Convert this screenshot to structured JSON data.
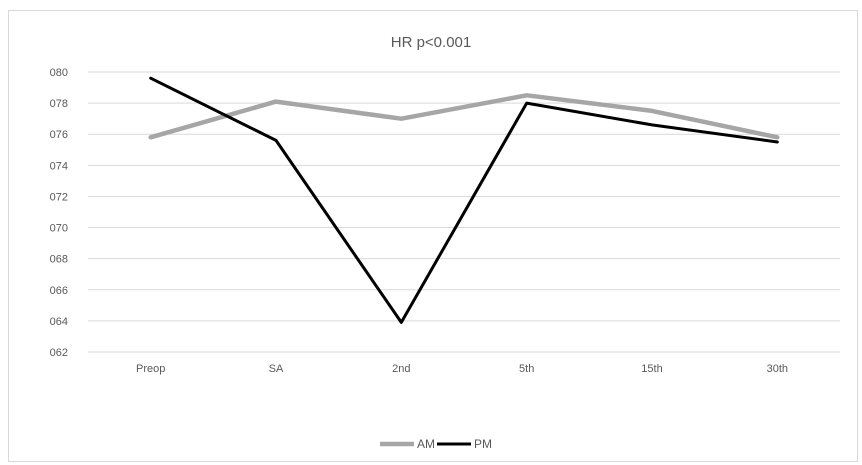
{
  "chart_data": {
    "type": "line",
    "title": "HR   p<0.001",
    "xlabel": "",
    "ylabel": "",
    "categories": [
      "Preop",
      "SA",
      "2nd",
      "5th",
      "15th",
      "30th"
    ],
    "ylim": [
      62,
      80
    ],
    "yticks": [
      62,
      64,
      66,
      68,
      70,
      72,
      74,
      76,
      78,
      80
    ],
    "ytick_labels": [
      "062",
      "064",
      "066",
      "068",
      "070",
      "072",
      "074",
      "076",
      "078",
      "080"
    ],
    "grid": true,
    "legend_position": "bottom",
    "series": [
      {
        "name": "AM",
        "color": "#a6a6a6",
        "values": [
          75.8,
          78.1,
          77.0,
          78.5,
          77.5,
          75.8
        ]
      },
      {
        "name": "PM",
        "color": "#000000",
        "values": [
          79.6,
          75.6,
          63.9,
          78.0,
          76.6,
          75.5
        ]
      }
    ]
  }
}
